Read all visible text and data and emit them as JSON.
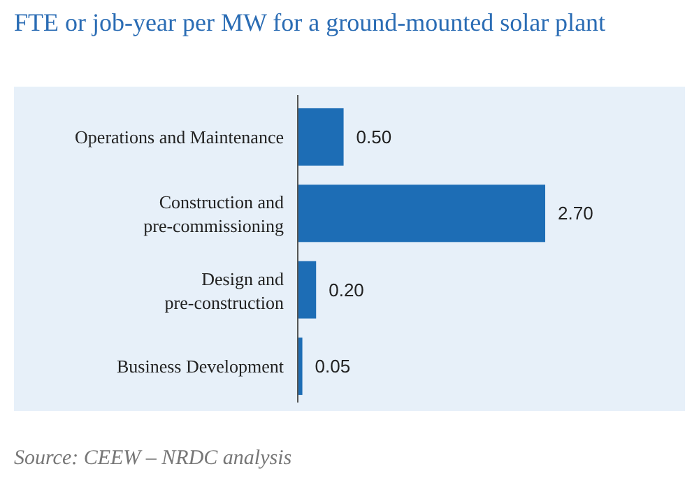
{
  "chart_data": {
    "type": "bar",
    "orientation": "horizontal",
    "title": "FTE or job-year per MW for a ground-mounted solar plant",
    "categories": [
      "Operations and Maintenance",
      "Construction and pre-commissioning",
      "Design and pre-construction",
      "Business Development"
    ],
    "values": [
      0.5,
      2.7,
      0.2,
      0.05
    ],
    "color": "#1d6db5",
    "data_labels": true,
    "value_labels": [
      "0.50",
      "2.70",
      "0.20",
      "0.05"
    ],
    "annotations": [
      "Source: CEEW – NRDC analysis"
    ]
  }
}
